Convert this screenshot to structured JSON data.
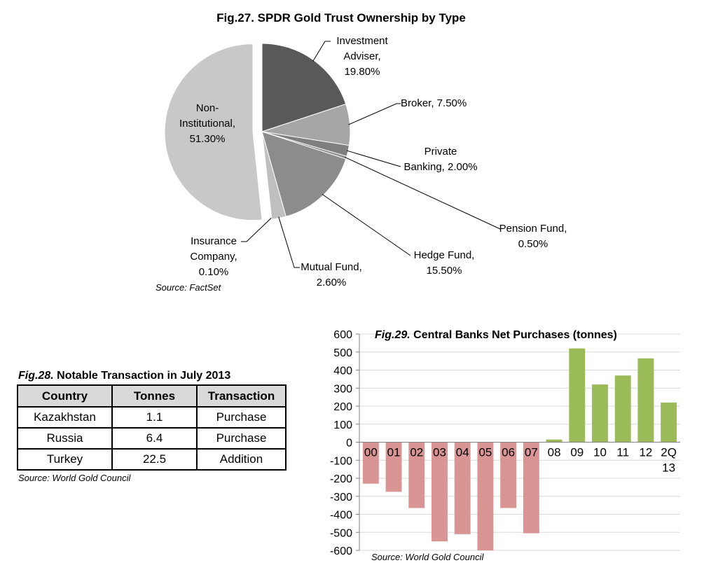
{
  "colors": {
    "investment": "#595959",
    "broker": "#a6a6a6",
    "private": "#7f7f7f",
    "pension": "#8c8c8c",
    "hedge": "#8c8c8c",
    "mutual": "#bfbfbf",
    "insurance": "#d0d0d0",
    "noninst": "#c8c8c8",
    "negative": "#d99594",
    "positive": "#9bbb59"
  },
  "chart_data": [
    {
      "type": "pie",
      "title": "Fig.27. SPDR Gold Trust Ownership by Type",
      "source": "Source: FactSet",
      "slices": [
        {
          "name": "Investment Adviser",
          "value": 19.8,
          "label_lines": [
            "Investment",
            "Adviser,",
            "19.80%"
          ]
        },
        {
          "name": "Broker",
          "value": 7.5,
          "label_lines": [
            "Broker, 7.50%"
          ]
        },
        {
          "name": "Private Banking",
          "value": 2.0,
          "label_lines": [
            "Private",
            "Banking, 2.00%"
          ]
        },
        {
          "name": "Pension Fund",
          "value": 0.5,
          "label_lines": [
            "Pension Fund,",
            "0.50%"
          ]
        },
        {
          "name": "Hedge Fund",
          "value": 15.5,
          "label_lines": [
            "Hedge Fund,",
            "15.50%"
          ]
        },
        {
          "name": "Mutual Fund",
          "value": 2.6,
          "label_lines": [
            "Mutual Fund,",
            "2.60%"
          ]
        },
        {
          "name": "Insurance Company",
          "value": 0.1,
          "label_lines": [
            "Insurance",
            "Company,",
            "0.10%"
          ]
        },
        {
          "name": "Non-Institutional",
          "value": 51.3,
          "label_lines": [
            "Non-",
            "Institutional,",
            "51.30%"
          ]
        }
      ]
    },
    {
      "type": "table",
      "title_prefix": "Fig.28.",
      "title_rest": " Notable Transaction in July 2013",
      "source": "Source: World Gold  Council",
      "columns": [
        "Country",
        "Tonnes",
        "Transaction"
      ],
      "rows": [
        [
          "Kazakhstan",
          "1.1",
          "Purchase"
        ],
        [
          "Russia",
          "6.4",
          "Purchase"
        ],
        [
          "Turkey",
          "22.5",
          "Addition"
        ]
      ]
    },
    {
      "type": "bar",
      "title_prefix": "Fig.29.",
      "title_rest": " Central Banks Net Purchases (tonnes)",
      "source": "Source: World Gold Council",
      "categories": [
        "00",
        "01",
        "02",
        "03",
        "04",
        "05",
        "06",
        "07",
        "08",
        "09",
        "10",
        "11",
        "12",
        "2Q 13"
      ],
      "values": [
        -230,
        -275,
        -365,
        -550,
        -510,
        -600,
        -365,
        -505,
        15,
        520,
        320,
        370,
        465,
        220
      ],
      "ylim": [
        -600,
        600
      ],
      "yticks": [
        -600,
        -500,
        -400,
        -300,
        -200,
        -100,
        0,
        100,
        200,
        300,
        400,
        500,
        600
      ],
      "grid": true
    }
  ]
}
